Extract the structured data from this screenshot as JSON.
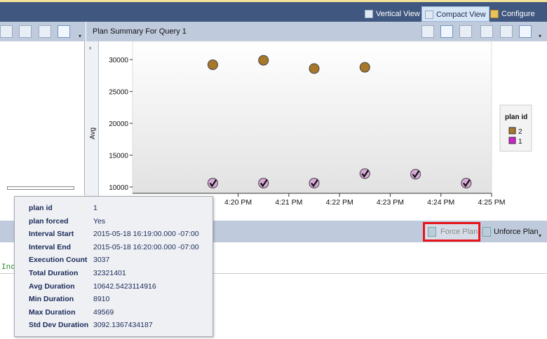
{
  "top_toolbar": {
    "vertical_view": "Vertical View",
    "compact_view": "Compact View",
    "configure": "Configure"
  },
  "chart_toolbar": {
    "title": "Plan Summary For Query 1"
  },
  "bottom_toolbar": {
    "force_plan": "Force Plan",
    "unforce_plan": "Unforce Plan"
  },
  "lower_pane": {
    "code_fragment": "Ind"
  },
  "chart_data": {
    "type": "scatter",
    "ylabel": "Avg",
    "xlabel": "",
    "ylim": [
      9000,
      32000
    ],
    "yticks": [
      10000,
      15000,
      20000,
      25000,
      30000
    ],
    "xticks": [
      "4:20 PM",
      "4:21 PM",
      "4:22 PM",
      "4:23 PM",
      "4:24 PM",
      "4:25 PM"
    ],
    "xlim": [
      "4:17:55 PM",
      "4:25 PM"
    ],
    "legend": {
      "title": "plan id",
      "position": "right"
    },
    "series": [
      {
        "name": "2",
        "color": "#a7772a",
        "forced": false,
        "points": [
          [
            "4:19:30 PM",
            29200
          ],
          [
            "4:20:30 PM",
            29900
          ],
          [
            "4:21:30 PM",
            28600
          ],
          [
            "4:22:30 PM",
            28800
          ]
        ]
      },
      {
        "name": "1",
        "color": "#d9a9d9",
        "forced": true,
        "points": [
          [
            "4:19:30 PM",
            10600
          ],
          [
            "4:20:30 PM",
            10600
          ],
          [
            "4:21:30 PM",
            10600
          ],
          [
            "4:22:30 PM",
            12100
          ],
          [
            "4:23:30 PM",
            12000
          ],
          [
            "4:24:30 PM",
            10600
          ]
        ]
      }
    ]
  },
  "tooltip": [
    {
      "k": "plan id",
      "v": "1"
    },
    {
      "k": "plan forced",
      "v": "Yes"
    },
    {
      "k": "Interval Start",
      "v": "2015-05-18 16:19:00.000 -07:00"
    },
    {
      "k": "Interval End",
      "v": "2015-05-18 16:20:00.000 -07:00"
    },
    {
      "k": "Execution Count",
      "v": "3037"
    },
    {
      "k": "Total Duration",
      "v": "32321401"
    },
    {
      "k": "Avg Duration",
      "v": "10642.5423114916"
    },
    {
      "k": "Min Duration",
      "v": "8910"
    },
    {
      "k": "Max Duration",
      "v": "49569"
    },
    {
      "k": "Std Dev Duration",
      "v": "3092.1367434187"
    }
  ]
}
